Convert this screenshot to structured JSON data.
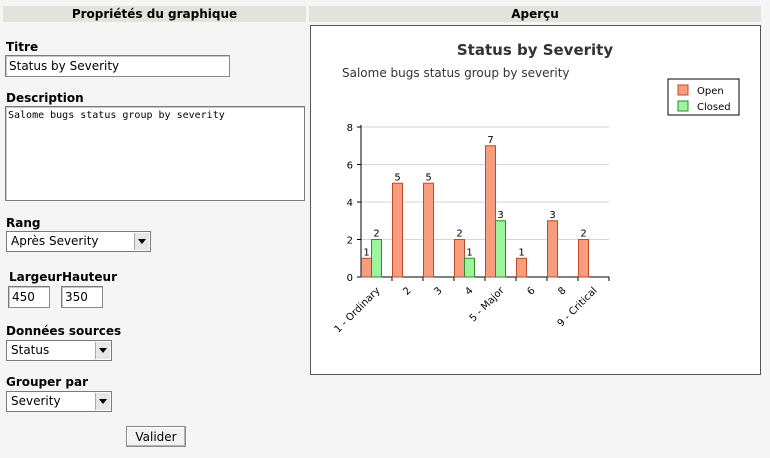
{
  "left_panel": {
    "header": "Propriétés du graphique",
    "titre_label": "Titre",
    "titre_value": "Status by Severity",
    "description_label": "Description",
    "description_value": "Salome bugs status group by severity",
    "rang_label": "Rang",
    "rang_value": "Après Severity",
    "largeur_label": "Largeur",
    "largeur_value": "450",
    "hauteur_label": "Hauteur",
    "hauteur_value": "350",
    "donnees_label": "Données sources",
    "donnees_value": "Status",
    "grouper_label": "Grouper par",
    "grouper_value": "Severity",
    "submit_label": "Valider"
  },
  "right_panel": {
    "header": "Aperçu"
  },
  "chart_data": {
    "type": "bar",
    "title": "Status by Severity",
    "subtitle": "Salome bugs status group by severity",
    "categories": [
      "1 - Ordinary",
      "2",
      "3",
      "4",
      "5 - Major",
      "6",
      "8",
      "9 - Critical"
    ],
    "series": [
      {
        "name": "Open",
        "values": [
          1,
          5,
          5,
          2,
          7,
          1,
          3,
          2
        ],
        "color": "#f79c7c",
        "stroke": "#c04a2a"
      },
      {
        "name": "Closed",
        "values": [
          2,
          null,
          null,
          1,
          3,
          null,
          null,
          null
        ],
        "color": "#9cf59c",
        "stroke": "#2e8b2e"
      }
    ],
    "yticks": [
      0,
      2,
      4,
      6,
      8
    ],
    "ylim": [
      0,
      8
    ],
    "grid": true,
    "legend": "top-right"
  }
}
